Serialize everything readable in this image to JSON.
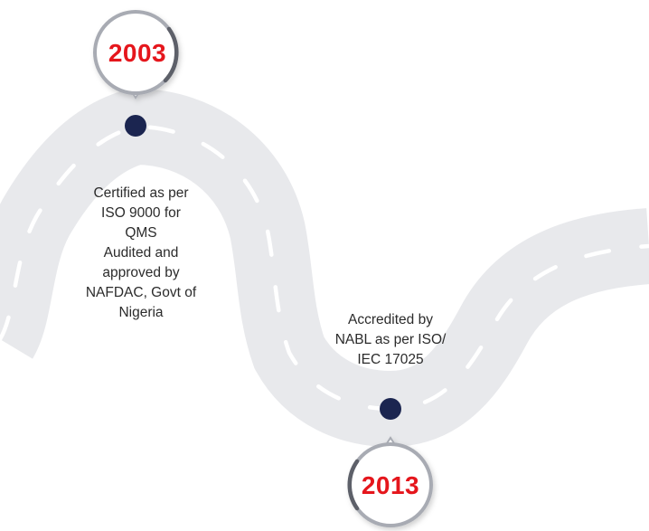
{
  "milestones": [
    {
      "year": "2003",
      "lines": [
        "Certified as per",
        "ISO 9000 for",
        "QMS",
        "Audited and",
        "approved by",
        "NAFDAC, Govt of",
        "Nigeria"
      ]
    },
    {
      "year": "2013",
      "lines": [
        "Accredited by",
        "NABL as per ISO/",
        "IEC 17025"
      ]
    }
  ],
  "colors": {
    "road": "#e8e9ec",
    "road_dash": "#ffffff",
    "dot": "#1b2550",
    "year_text": "#e5161d",
    "badge_ring": "#a8abb3",
    "badge_ring_dark": "#5d6069"
  }
}
